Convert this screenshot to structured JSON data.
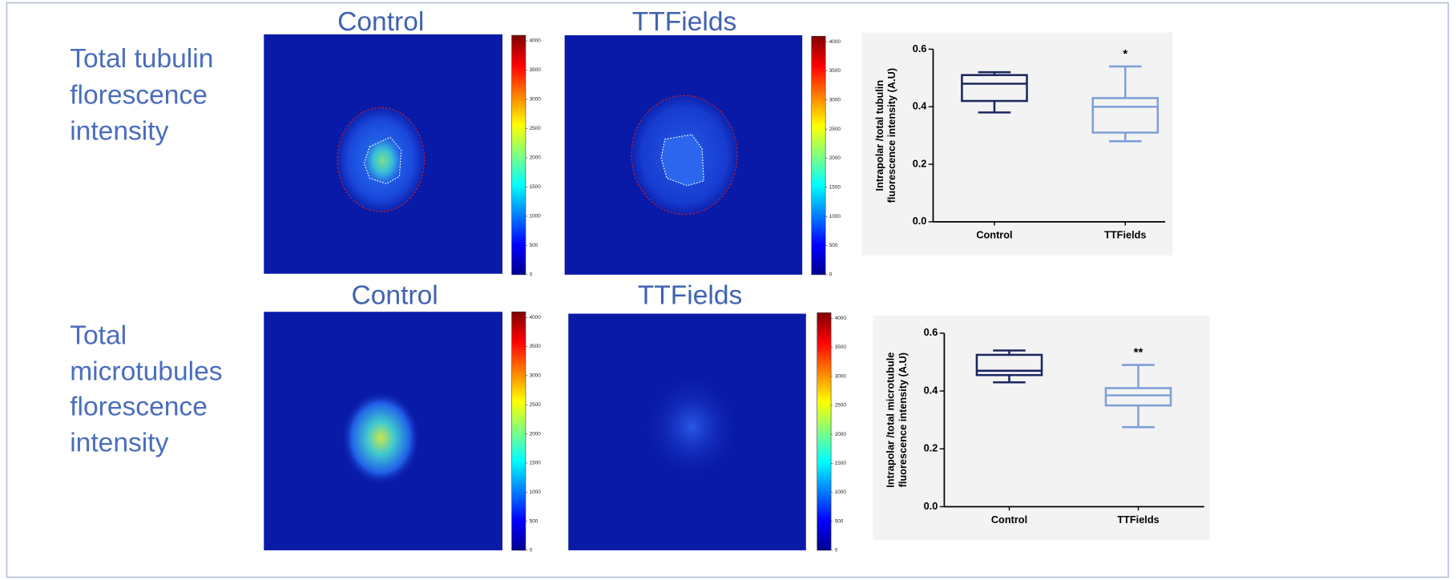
{
  "rows": [
    {
      "label_lines": [
        "Total tubulin",
        "florescence",
        "intensity"
      ],
      "panels": [
        "Control",
        "TTFields"
      ]
    },
    {
      "label_lines": [
        "Total",
        "microtubules",
        "florescence",
        "intensity"
      ],
      "panels": [
        "Control",
        "TTFields"
      ]
    }
  ],
  "colorbar": {
    "clim": [
      0,
      4096
    ],
    "ticks": [
      0,
      500,
      1000,
      1500,
      2000,
      2500,
      3000,
      3500,
      4000
    ]
  },
  "chart_data": [
    {
      "type": "box",
      "y_label_lines": [
        "Intrapolar /total tubulin",
        "fluorescence intensity (A.U)"
      ],
      "categories": [
        "Control",
        "TTFields"
      ],
      "boxes": [
        {
          "min": 0.38,
          "q1": 0.42,
          "median": 0.48,
          "q3": 0.51,
          "max": 0.52,
          "color": "#1c2760"
        },
        {
          "min": 0.28,
          "q1": 0.31,
          "median": 0.4,
          "q3": 0.43,
          "max": 0.54,
          "color": "#7f9fd8",
          "annotation": "*"
        }
      ],
      "ylim": [
        0,
        0.6
      ],
      "yticks": [
        {
          "value": 0,
          "label": "0.0"
        },
        0.2,
        0.4,
        0.6
      ]
    },
    {
      "type": "box",
      "y_label_lines": [
        "Intrapolar /total microtubule",
        "fluorescence intensity (A.U)"
      ],
      "categories": [
        "Control",
        "TTFields"
      ],
      "boxes": [
        {
          "min": 0.43,
          "q1": 0.455,
          "median": 0.47,
          "q3": 0.525,
          "max": 0.54,
          "color": "#1c2760"
        },
        {
          "min": 0.275,
          "q1": 0.35,
          "median": 0.385,
          "q3": 0.41,
          "max": 0.49,
          "color": "#7f9fd8",
          "annotation": "**"
        }
      ],
      "ylim": [
        0,
        0.6
      ],
      "yticks": [
        {
          "value": 0,
          "label": "0.0"
        },
        0.2,
        0.4,
        0.6
      ]
    }
  ]
}
